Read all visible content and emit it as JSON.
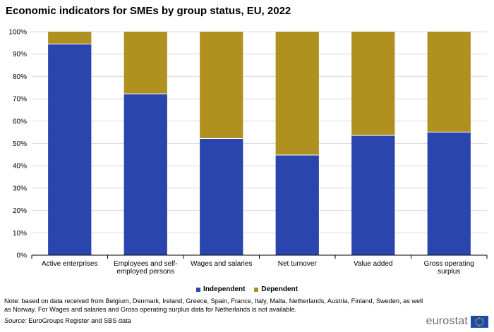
{
  "title": "Economic indicators for SMEs by group status, EU, 2022",
  "chart_data": {
    "type": "bar",
    "stacked": true,
    "categories": [
      [
        "Active enterprises"
      ],
      [
        "Employees and self-",
        "employed persons"
      ],
      [
        "Wages and salaries"
      ],
      [
        "Net turnover"
      ],
      [
        "Value added"
      ],
      [
        "Gross operating",
        "surplus"
      ]
    ],
    "series": [
      {
        "name": "Independent",
        "color": "#2a45ad",
        "values": [
          94.5,
          72.2,
          52.2,
          44.8,
          53.6,
          55.1
        ]
      },
      {
        "name": "Dependent",
        "color": "#b09120",
        "values": [
          5.5,
          27.8,
          47.8,
          55.2,
          46.4,
          44.9
        ]
      }
    ],
    "ylim": [
      0,
      100
    ],
    "yticks": [
      "0%",
      "10%",
      "20%",
      "30%",
      "40%",
      "50%",
      "60%",
      "70%",
      "80%",
      "90%",
      "100%"
    ],
    "grid": true,
    "legend": "bottom-center"
  },
  "note": "Note: based on data received from Belgium,  Denmark, Ireland, Greece, Spain, France, Italy, Malta, Netherlands, Austria, Finland, Sweden, as well as Norway.  For Wages and salaries and Gross operating surplus data for Netherlands is not available.",
  "source_label": "Source:",
  "source_text": " EuroGroups Register and SBS data",
  "logo_text": "eurostat"
}
